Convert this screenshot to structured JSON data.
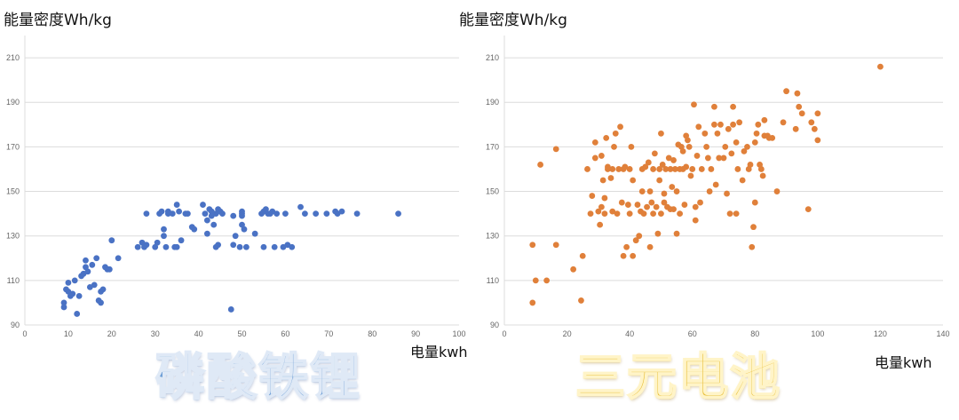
{
  "chart_data": [
    {
      "type": "scatter",
      "ylabel": "能量密度Wh/kg",
      "xlabel": "电量kwh",
      "caption": "磷酸铁锂",
      "xlim": [
        0,
        100
      ],
      "ylim": [
        90,
        220
      ],
      "xticks": [
        0,
        10,
        20,
        30,
        40,
        50,
        60,
        70,
        80,
        90,
        100
      ],
      "yticks": [
        90,
        110,
        130,
        150,
        170,
        190,
        210
      ],
      "grid": true,
      "color": "#4a72c4",
      "points": [
        [
          9,
          98
        ],
        [
          9,
          100
        ],
        [
          9.5,
          106
        ],
        [
          10,
          105
        ],
        [
          10,
          109
        ],
        [
          10.5,
          103
        ],
        [
          11,
          104
        ],
        [
          11.5,
          110
        ],
        [
          12,
          95
        ],
        [
          12.5,
          103
        ],
        [
          13,
          112
        ],
        [
          13.5,
          113
        ],
        [
          14,
          116
        ],
        [
          14,
          119
        ],
        [
          14.5,
          114
        ],
        [
          15,
          107
        ],
        [
          15.5,
          117
        ],
        [
          16,
          108
        ],
        [
          16.5,
          120
        ],
        [
          17,
          101
        ],
        [
          17.5,
          100
        ],
        [
          17.5,
          105
        ],
        [
          18,
          106
        ],
        [
          18.5,
          116
        ],
        [
          19,
          115
        ],
        [
          19.5,
          115
        ],
        [
          20,
          128
        ],
        [
          21.5,
          120
        ],
        [
          26,
          125
        ],
        [
          27,
          127
        ],
        [
          27.5,
          125
        ],
        [
          28,
          140
        ],
        [
          28,
          126
        ],
        [
          30,
          125
        ],
        [
          30.5,
          127
        ],
        [
          31,
          140
        ],
        [
          31.5,
          141
        ],
        [
          32,
          130
        ],
        [
          32,
          133
        ],
        [
          32.5,
          125
        ],
        [
          33,
          140
        ],
        [
          33,
          141
        ],
        [
          34,
          140
        ],
        [
          34.5,
          125
        ],
        [
          35,
          144
        ],
        [
          35,
          125
        ],
        [
          35.5,
          141
        ],
        [
          36,
          128
        ],
        [
          37,
          140
        ],
        [
          37.5,
          140
        ],
        [
          38.5,
          134
        ],
        [
          39,
          133
        ],
        [
          41,
          144
        ],
        [
          41.5,
          140
        ],
        [
          42,
          137
        ],
        [
          42,
          131
        ],
        [
          42.5,
          142
        ],
        [
          43,
          141
        ],
        [
          43,
          139
        ],
        [
          43.5,
          135
        ],
        [
          44,
          140
        ],
        [
          44,
          125
        ],
        [
          44.5,
          126
        ],
        [
          44.5,
          142
        ],
        [
          45,
          141
        ],
        [
          45.5,
          140
        ],
        [
          47.5,
          97
        ],
        [
          48,
          139
        ],
        [
          48,
          126
        ],
        [
          48.5,
          130
        ],
        [
          49.5,
          125
        ],
        [
          50,
          139
        ],
        [
          50,
          140
        ],
        [
          50,
          141
        ],
        [
          50,
          135
        ],
        [
          50.5,
          133
        ],
        [
          51,
          125
        ],
        [
          53,
          131
        ],
        [
          54.5,
          140
        ],
        [
          55,
          141
        ],
        [
          55,
          125
        ],
        [
          55.5,
          142
        ],
        [
          56,
          140
        ],
        [
          56.5,
          140
        ],
        [
          57,
          141
        ],
        [
          57.5,
          125
        ],
        [
          58,
          140
        ],
        [
          59.5,
          125
        ],
        [
          60,
          140
        ],
        [
          60.5,
          126
        ],
        [
          61.5,
          125
        ],
        [
          63.5,
          143
        ],
        [
          64.5,
          140
        ],
        [
          67,
          140
        ],
        [
          69.5,
          140
        ],
        [
          71.5,
          141
        ],
        [
          72,
          140
        ],
        [
          73,
          141
        ],
        [
          76.5,
          140
        ],
        [
          86,
          140
        ]
      ]
    },
    {
      "type": "scatter",
      "ylabel": "能量密度Wh/kg",
      "xlabel": "电量kwh",
      "caption": "三元电池",
      "xlim": [
        0,
        140
      ],
      "ylim": [
        90,
        220
      ],
      "xticks": [
        0,
        20,
        40,
        60,
        80,
        100,
        120,
        140
      ],
      "yticks": [
        90,
        110,
        130,
        150,
        170,
        190,
        210
      ],
      "grid": true,
      "color": "#e0803a",
      "points": [
        [
          9,
          100
        ],
        [
          9,
          126
        ],
        [
          10,
          110
        ],
        [
          11.5,
          162
        ],
        [
          13.5,
          110
        ],
        [
          16.5,
          126
        ],
        [
          16.5,
          169
        ],
        [
          22,
          115
        ],
        [
          24.5,
          101
        ],
        [
          25,
          121
        ],
        [
          26.5,
          160
        ],
        [
          27.5,
          140
        ],
        [
          28,
          148
        ],
        [
          29,
          165
        ],
        [
          29,
          172
        ],
        [
          30,
          141
        ],
        [
          30.5,
          135
        ],
        [
          31,
          143
        ],
        [
          31,
          166
        ],
        [
          31.5,
          155
        ],
        [
          32,
          140
        ],
        [
          32,
          147
        ],
        [
          32.5,
          174
        ],
        [
          33,
          160
        ],
        [
          33,
          161
        ],
        [
          34,
          156
        ],
        [
          34.5,
          141
        ],
        [
          34.5,
          160
        ],
        [
          35,
          170
        ],
        [
          35.5,
          176
        ],
        [
          36,
          140
        ],
        [
          36.5,
          160
        ],
        [
          37,
          179
        ],
        [
          37.5,
          145
        ],
        [
          38,
          160
        ],
        [
          38,
          121
        ],
        [
          38.5,
          161
        ],
        [
          39,
          125
        ],
        [
          39.5,
          144
        ],
        [
          40,
          140
        ],
        [
          40,
          160
        ],
        [
          40.5,
          170
        ],
        [
          41,
          155
        ],
        [
          41,
          121
        ],
        [
          42,
          128
        ],
        [
          42.5,
          144
        ],
        [
          43,
          130
        ],
        [
          43.5,
          141
        ],
        [
          44,
          160
        ],
        [
          44,
          150
        ],
        [
          44.5,
          140
        ],
        [
          45,
          161
        ],
        [
          45.5,
          143
        ],
        [
          46,
          163
        ],
        [
          46.5,
          150
        ],
        [
          46.5,
          125
        ],
        [
          47,
          145
        ],
        [
          47.5,
          160
        ],
        [
          47.5,
          140
        ],
        [
          48,
          167
        ],
        [
          48.5,
          143
        ],
        [
          49,
          131
        ],
        [
          49.5,
          160
        ],
        [
          49.5,
          155
        ],
        [
          50,
          140
        ],
        [
          50,
          176
        ],
        [
          50.5,
          162
        ],
        [
          51,
          145
        ],
        [
          51,
          149
        ],
        [
          51.5,
          160
        ],
        [
          52,
          143
        ],
        [
          52.5,
          165
        ],
        [
          53,
          142
        ],
        [
          53,
          160
        ],
        [
          53.5,
          152
        ],
        [
          54,
          164
        ],
        [
          54,
          142
        ],
        [
          54.5,
          160
        ],
        [
          55,
          150
        ],
        [
          55,
          131
        ],
        [
          55.5,
          171
        ],
        [
          56,
          160
        ],
        [
          56,
          140
        ],
        [
          56.5,
          170
        ],
        [
          57,
          160
        ],
        [
          57,
          168
        ],
        [
          57.5,
          144
        ],
        [
          58,
          175
        ],
        [
          58,
          161
        ],
        [
          58.5,
          173
        ],
        [
          59,
          170
        ],
        [
          59.5,
          157
        ],
        [
          60,
          160
        ],
        [
          60.5,
          189
        ],
        [
          61,
          143
        ],
        [
          61,
          137
        ],
        [
          61.5,
          166
        ],
        [
          62,
          179
        ],
        [
          62.5,
          145
        ],
        [
          63,
          160
        ],
        [
          64,
          176
        ],
        [
          64.5,
          170
        ],
        [
          65,
          165
        ],
        [
          65.5,
          150
        ],
        [
          66,
          160
        ],
        [
          67,
          188
        ],
        [
          67,
          180
        ],
        [
          67.5,
          153
        ],
        [
          68,
          176
        ],
        [
          68.5,
          165
        ],
        [
          69,
          180
        ],
        [
          70,
          165
        ],
        [
          70.5,
          170
        ],
        [
          71,
          149
        ],
        [
          71.5,
          178
        ],
        [
          72,
          140
        ],
        [
          72.5,
          167
        ],
        [
          73,
          180
        ],
        [
          73,
          188
        ],
        [
          74,
          172
        ],
        [
          74,
          140
        ],
        [
          74.5,
          160
        ],
        [
          75,
          181
        ],
        [
          76,
          155
        ],
        [
          76.5,
          168
        ],
        [
          77.5,
          170
        ],
        [
          78,
          160
        ],
        [
          78.5,
          162
        ],
        [
          79,
          125
        ],
        [
          79.5,
          134
        ],
        [
          80,
          145
        ],
        [
          80,
          172
        ],
        [
          80.5,
          176
        ],
        [
          81,
          180
        ],
        [
          81.5,
          162
        ],
        [
          82,
          160
        ],
        [
          82.5,
          157
        ],
        [
          83,
          182
        ],
        [
          83,
          175
        ],
        [
          84,
          175
        ],
        [
          84.5,
          174
        ],
        [
          85.5,
          174
        ],
        [
          87,
          150
        ],
        [
          89,
          181
        ],
        [
          90,
          195
        ],
        [
          93,
          178
        ],
        [
          93.5,
          194
        ],
        [
          94,
          188
        ],
        [
          95,
          185
        ],
        [
          97,
          142
        ],
        [
          98,
          181
        ],
        [
          99,
          178
        ],
        [
          100,
          185
        ],
        [
          100,
          173
        ],
        [
          120,
          206
        ]
      ]
    }
  ]
}
